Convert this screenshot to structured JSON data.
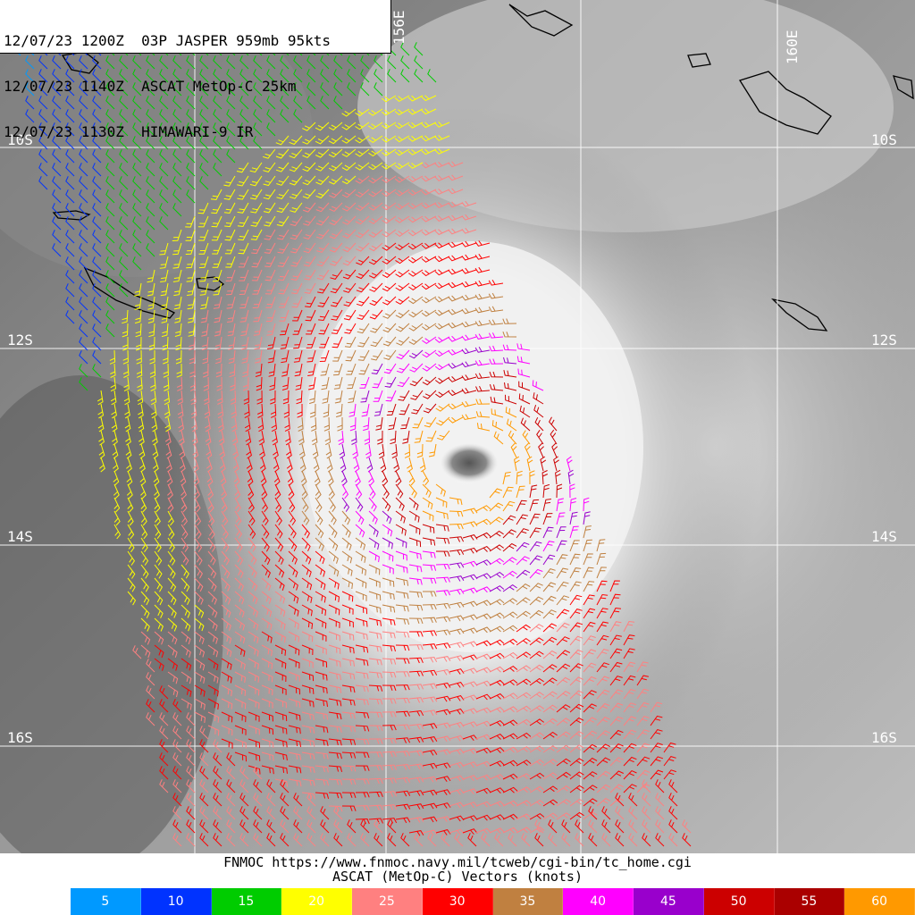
{
  "header": {
    "lines": [
      "12/07/23 1200Z  03P JASPER 959mb 95kts",
      "12/07/23 1140Z  ASCAT MetOp-C 25km",
      "12/07/23 1130Z  HIMAWARI-9 IR"
    ]
  },
  "map": {
    "lat_labels": [
      "10S",
      "12S",
      "14S",
      "16S"
    ],
    "lon_labels": [
      "156E",
      "160E"
    ],
    "storm_name": "03P JASPER"
  },
  "footer": {
    "credit": "FNMOC https://www.fnmoc.navy.mil/tcweb/cgi-bin/tc_home.cgi",
    "vector_title": "ASCAT (MetOp-C) Vectors (knots)"
  },
  "legend": [
    {
      "label": "5",
      "color": "#0099ff"
    },
    {
      "label": "10",
      "color": "#0033ff"
    },
    {
      "label": "15",
      "color": "#00cc00"
    },
    {
      "label": "20",
      "color": "#ffff00"
    },
    {
      "label": "25",
      "color": "#ff8080"
    },
    {
      "label": "30",
      "color": "#ff0000"
    },
    {
      "label": "35",
      "color": "#c08040"
    },
    {
      "label": "40",
      "color": "#ff00ff"
    },
    {
      "label": "45",
      "color": "#9900cc"
    },
    {
      "label": "50",
      "color": "#cc0000"
    },
    {
      "label": "55",
      "color": "#aa0000"
    },
    {
      "label": "60",
      "color": "#ff9900"
    }
  ]
}
